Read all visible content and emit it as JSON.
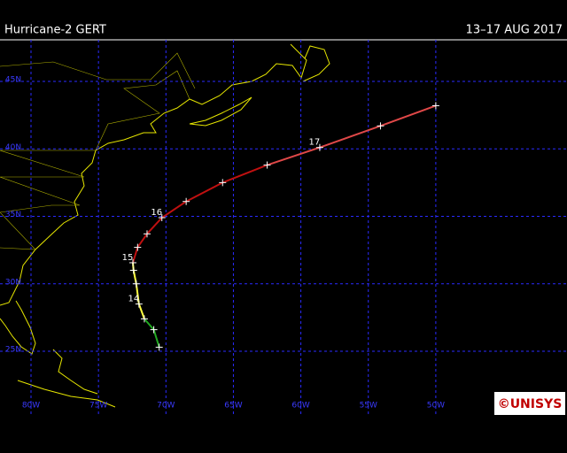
{
  "header": {
    "title": "Hurricane-2 GERT",
    "dates": "13–17 AUG 2017"
  },
  "grid": {
    "lat": [
      {
        "value": 45,
        "label": "45N"
      },
      {
        "value": 40,
        "label": "40N"
      },
      {
        "value": 35,
        "label": "35N"
      },
      {
        "value": 30,
        "label": "30N"
      },
      {
        "value": 25,
        "label": "25N"
      }
    ],
    "lon": [
      {
        "value": -80,
        "label": "80W"
      },
      {
        "value": -75,
        "label": "75W"
      },
      {
        "value": -70,
        "label": "70W"
      },
      {
        "value": -65,
        "label": "65W"
      },
      {
        "value": -60,
        "label": "60W"
      },
      {
        "value": -55,
        "label": "55W"
      },
      {
        "value": -50,
        "label": "50W"
      }
    ],
    "color": "#2a2aff"
  },
  "track": {
    "points": [
      {
        "lon": -70.5,
        "lat": 25.3,
        "color": "#22aa22"
      },
      {
        "lon": -70.9,
        "lat": 26.6,
        "color": "#22aa22"
      },
      {
        "lon": -71.6,
        "lat": 27.4,
        "color": "#22aa22"
      },
      {
        "lon": -72.0,
        "lat": 28.5,
        "color": "#ffff40",
        "label": "14"
      },
      {
        "lon": -72.2,
        "lat": 30.0,
        "color": "#ffff40"
      },
      {
        "lon": -72.4,
        "lat": 31.0,
        "color": "#ffff40"
      },
      {
        "lon": -72.45,
        "lat": 31.56,
        "color": "#ffff40",
        "label": "15"
      },
      {
        "lon": -72.1,
        "lat": 32.7,
        "color": "#c01010"
      },
      {
        "lon": -71.4,
        "lat": 33.7,
        "color": "#c01010"
      },
      {
        "lon": -70.3,
        "lat": 34.9,
        "color": "#c01010",
        "label": "16"
      },
      {
        "lon": -68.5,
        "lat": 36.1,
        "color": "#c01010"
      },
      {
        "lon": -65.8,
        "lat": 37.5,
        "color": "#c01010"
      },
      {
        "lon": -62.5,
        "lat": 38.8,
        "color": "#c01010"
      },
      {
        "lon": -58.6,
        "lat": 40.1,
        "color": "#e04848",
        "label": "17"
      },
      {
        "lon": -54.1,
        "lat": 41.7,
        "color": "#e04848"
      },
      {
        "lon": -50.0,
        "lat": 43.2,
        "color": "#e04848"
      }
    ]
  },
  "logo": "©UNISYS"
}
